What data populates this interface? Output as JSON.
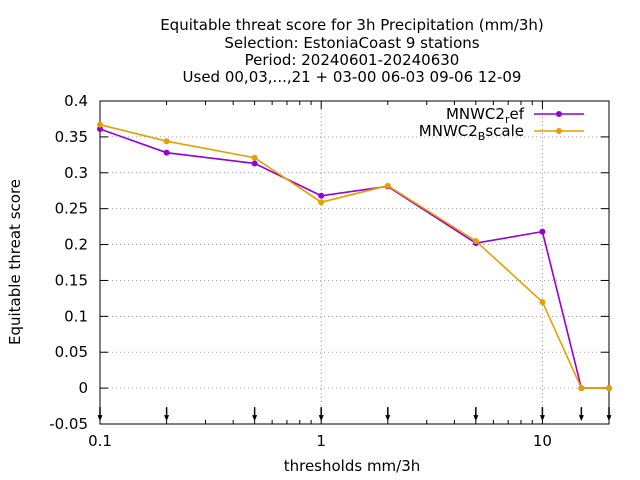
{
  "chart_data": {
    "type": "line",
    "title_lines": [
      "Equitable threat score  for 3h Precipitation (mm/3h)",
      "Selection: EstoniaCoast       9 stations",
      "Period: 20240601-20240630",
      "Used 00,03,...,21 + 03-00 06-03 09-06 12-09"
    ],
    "xlabel": "thresholds mm/3h",
    "ylabel": "Equitable threat score",
    "x_scale": "log",
    "xlim": [
      0.1,
      20
    ],
    "ylim": [
      -0.05,
      0.4
    ],
    "x_ticks": [
      0.1,
      1,
      10
    ],
    "x_tick_labels": [
      "0.1",
      "1",
      "10"
    ],
    "y_ticks": [
      -0.05,
      0,
      0.05,
      0.1,
      0.15,
      0.2,
      0.25,
      0.3,
      0.35,
      0.4
    ],
    "y_tick_labels": [
      "-0.05",
      "0",
      "0.05",
      "0.1",
      "0.15",
      "0.2",
      "0.25",
      "0.3",
      "0.35",
      "0.4"
    ],
    "grid": true,
    "legend_position": "top-right",
    "threshold_markers": [
      0.1,
      0.2,
      0.5,
      1,
      2,
      5,
      10,
      15,
      20
    ],
    "x": [
      0.1,
      0.2,
      0.5,
      1,
      2,
      5,
      10,
      15,
      20
    ],
    "series": [
      {
        "name": "MNWC2_ref",
        "legend_main": "MNWC2",
        "legend_sub": "r",
        "legend_tail": "ef",
        "color": "#9400d3",
        "values": [
          0.361,
          0.328,
          0.313,
          0.268,
          0.281,
          0.202,
          0.218,
          0.0,
          0.0
        ]
      },
      {
        "name": "MNWC2_Bscale",
        "legend_main": "MNWC2",
        "legend_sub": "B",
        "legend_tail": "scale",
        "color": "#e69f00",
        "values": [
          0.367,
          0.344,
          0.321,
          0.259,
          0.282,
          0.205,
          0.12,
          0.0,
          0.0
        ]
      }
    ]
  }
}
